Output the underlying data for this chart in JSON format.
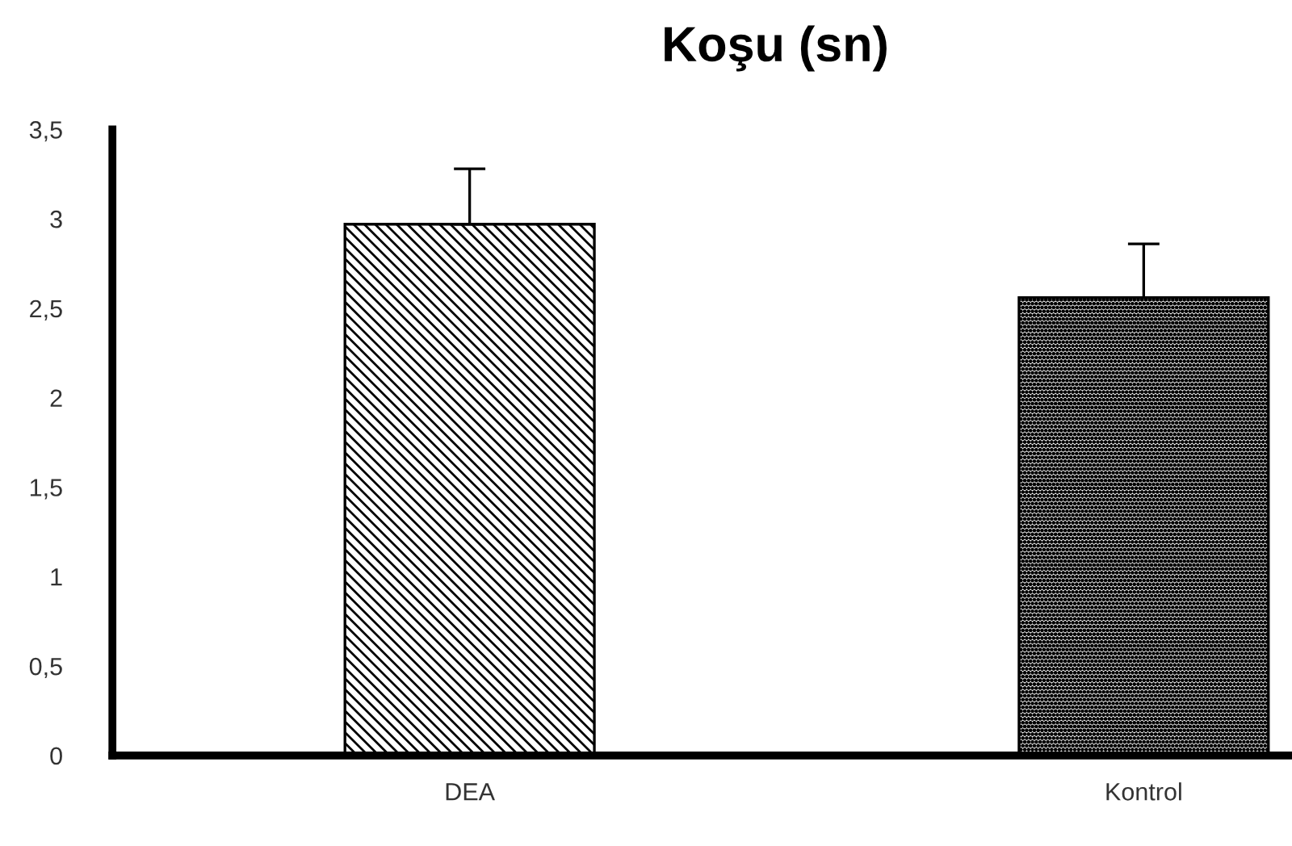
{
  "chart_data": {
    "type": "bar",
    "title": "Koşu (sn)",
    "categories": [
      "DEA",
      "Kontrol"
    ],
    "values": [
      2.97,
      2.56
    ],
    "errors": [
      [
        2.97,
        3.28
      ],
      [
        2.56,
        2.86
      ]
    ],
    "colors": [
      "#000000",
      "#000000"
    ],
    "ylim": [
      0,
      3.5
    ],
    "yticks": [
      0,
      {
        "value": 0.5,
        "label": "0,5"
      },
      1,
      {
        "value": 1.5,
        "label": "1,5"
      },
      2,
      {
        "value": 2.5,
        "label": "2,5"
      },
      3,
      {
        "value": 3.5,
        "label": "3,5"
      }
    ],
    "grid": false
  }
}
